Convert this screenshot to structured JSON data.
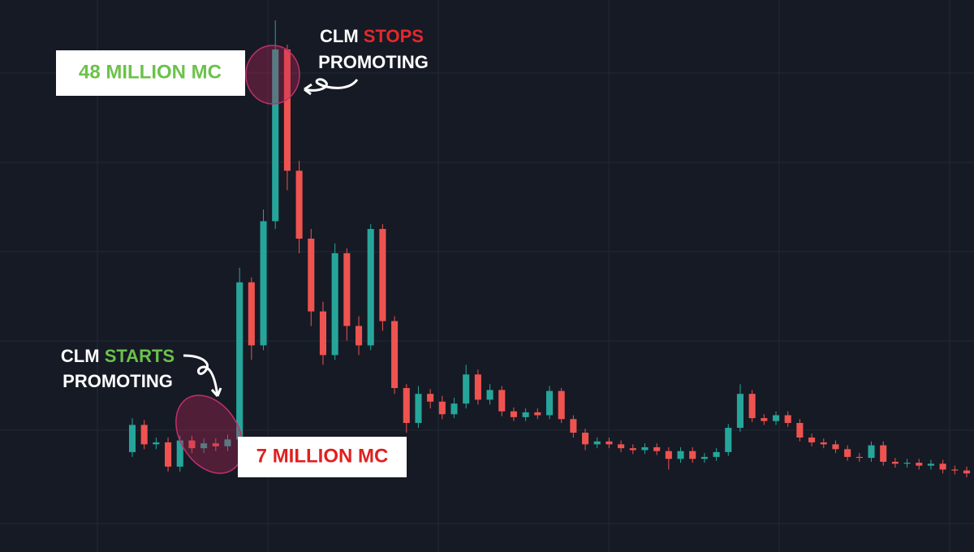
{
  "chart_data": {
    "type": "candlestick",
    "up_color": "#26a69a",
    "down_color": "#ef5350",
    "ylim": [
      -4.3,
      52.6
    ],
    "open": [
      6.0,
      8.8,
      6.8,
      7.0,
      4.5,
      7.2,
      6.4,
      6.9,
      6.6,
      7.3,
      23.5,
      17.0,
      29.8,
      47.5,
      35.0,
      28.0,
      20.5,
      16.0,
      26.5,
      19.0,
      17.0,
      29.0,
      19.5,
      12.6,
      9.0,
      12.0,
      11.2,
      9.9,
      11.0,
      14.0,
      11.4,
      12.4,
      10.2,
      9.6,
      10.1,
      9.8,
      12.3,
      9.4,
      8.0,
      6.8,
      7.1,
      6.8,
      6.4,
      6.2,
      6.5,
      6.1,
      5.3,
      6.1,
      5.3,
      5.5,
      6.0,
      8.5,
      12.0,
      9.5,
      9.2,
      9.8,
      9.0,
      7.5,
      7.0,
      6.8,
      6.3,
      5.5,
      5.4,
      6.7,
      5.0,
      4.8,
      4.9,
      4.6,
      4.8,
      4.2,
      4.1
    ],
    "high": [
      9.5,
      9.3,
      7.5,
      7.5,
      7.7,
      7.7,
      7.4,
      7.4,
      7.8,
      25.0,
      24.0,
      31.0,
      50.5,
      48.0,
      36.0,
      29.0,
      21.5,
      27.5,
      27.0,
      20.0,
      29.5,
      29.5,
      20.0,
      13.0,
      12.8,
      12.5,
      11.8,
      11.6,
      15.0,
      14.5,
      13.0,
      12.8,
      10.6,
      10.5,
      10.5,
      12.8,
      12.6,
      9.8,
      8.4,
      7.5,
      7.5,
      7.2,
      6.8,
      6.9,
      6.9,
      6.5,
      6.5,
      6.5,
      5.9,
      6.4,
      8.9,
      13.0,
      12.4,
      9.9,
      10.2,
      10.2,
      9.4,
      7.9,
      7.4,
      7.2,
      6.7,
      5.9,
      7.1,
      7.1,
      5.4,
      5.3,
      5.3,
      5.2,
      5.2,
      4.6,
      4.5
    ],
    "low": [
      5.5,
      6.3,
      6.3,
      4.0,
      4.0,
      5.9,
      5.9,
      6.1,
      6.1,
      6.8,
      15.5,
      16.5,
      29.0,
      33.0,
      26.5,
      19.0,
      15.0,
      15.5,
      17.5,
      16.0,
      16.5,
      18.5,
      12.0,
      8.0,
      8.5,
      10.5,
      9.4,
      9.5,
      10.5,
      10.9,
      10.9,
      9.7,
      9.2,
      9.2,
      9.4,
      9.4,
      9.0,
      7.5,
      6.2,
      6.4,
      6.4,
      6.0,
      5.8,
      5.8,
      5.7,
      4.2,
      4.9,
      4.9,
      4.9,
      5.1,
      5.6,
      8.1,
      9.1,
      8.8,
      8.8,
      8.6,
      7.1,
      6.6,
      6.4,
      5.9,
      5.1,
      5.0,
      5.0,
      4.6,
      4.4,
      4.4,
      4.2,
      4.2,
      3.8,
      3.7,
      3.4
    ],
    "close": [
      8.8,
      6.8,
      7.0,
      4.5,
      7.2,
      6.4,
      6.9,
      6.6,
      7.3,
      23.5,
      17.0,
      29.8,
      47.5,
      35.0,
      28.0,
      20.5,
      16.0,
      26.5,
      19.0,
      17.0,
      29.0,
      19.5,
      12.6,
      9.0,
      12.0,
      11.2,
      9.9,
      11.0,
      14.0,
      11.4,
      12.4,
      10.2,
      9.6,
      10.1,
      9.8,
      12.3,
      9.4,
      8.0,
      6.8,
      7.1,
      6.8,
      6.4,
      6.2,
      6.5,
      6.1,
      5.3,
      6.1,
      5.3,
      5.5,
      6.0,
      8.5,
      12.0,
      9.5,
      9.2,
      9.8,
      9.0,
      7.5,
      7.0,
      6.8,
      6.3,
      5.5,
      5.4,
      6.7,
      5.0,
      4.8,
      4.9,
      4.6,
      4.8,
      4.2,
      4.1,
      3.8
    ],
    "annotations": [
      "48 MILLION MC",
      "CLM",
      "STOPS",
      "PROMOTING",
      "CLM",
      "STARTS",
      "PROMOTING",
      "7 MILLION MC"
    ]
  }
}
